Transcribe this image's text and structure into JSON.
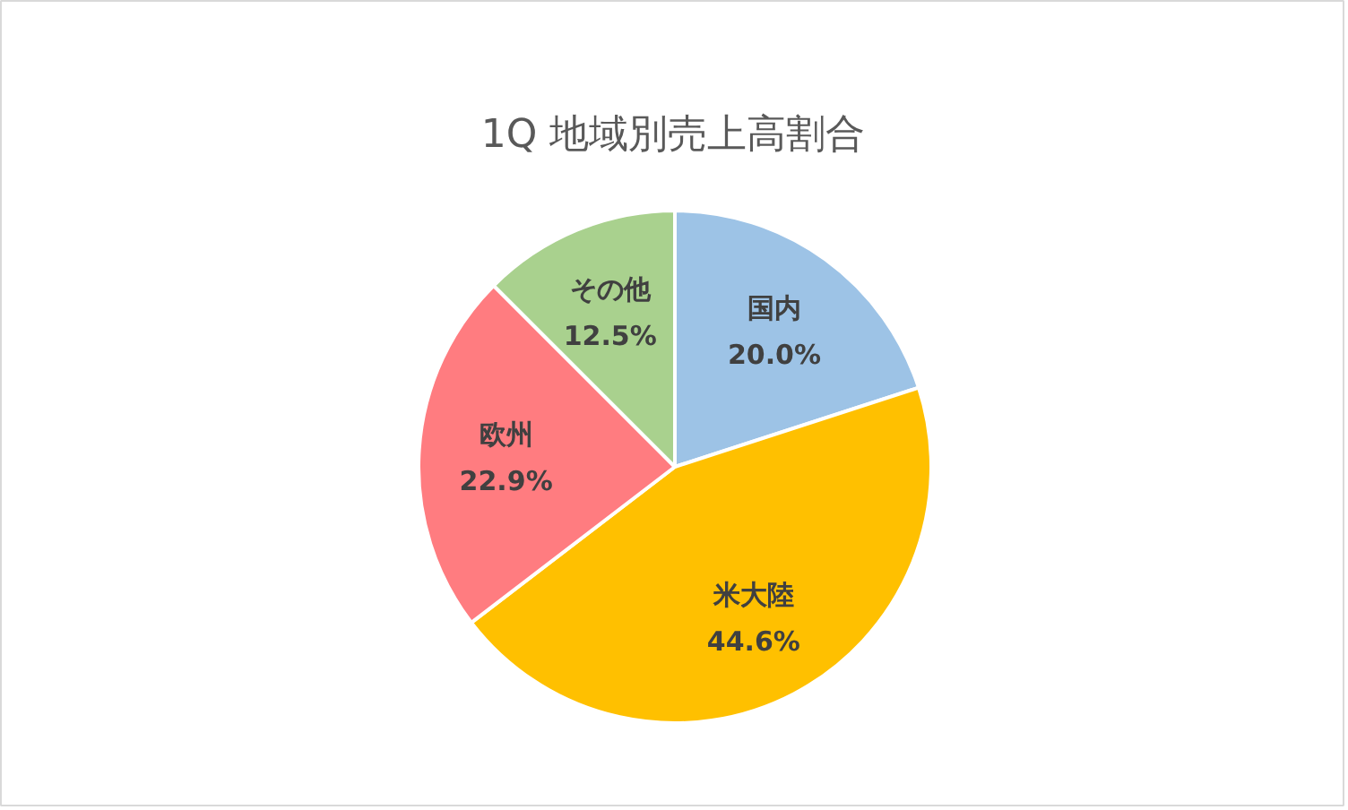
{
  "chart_data": {
    "type": "pie",
    "title": "1Q 地域別売上高割合",
    "categories": [
      "国内",
      "米大陸",
      "欧州",
      "その他"
    ],
    "values": [
      20.0,
      44.6,
      22.9,
      12.5
    ],
    "colors": [
      "#9dc3e6",
      "#ffc000",
      "#ff7c80",
      "#a9d18e"
    ],
    "value_labels": [
      "20.0%",
      "44.6%",
      "22.9%",
      "12.5%"
    ]
  }
}
